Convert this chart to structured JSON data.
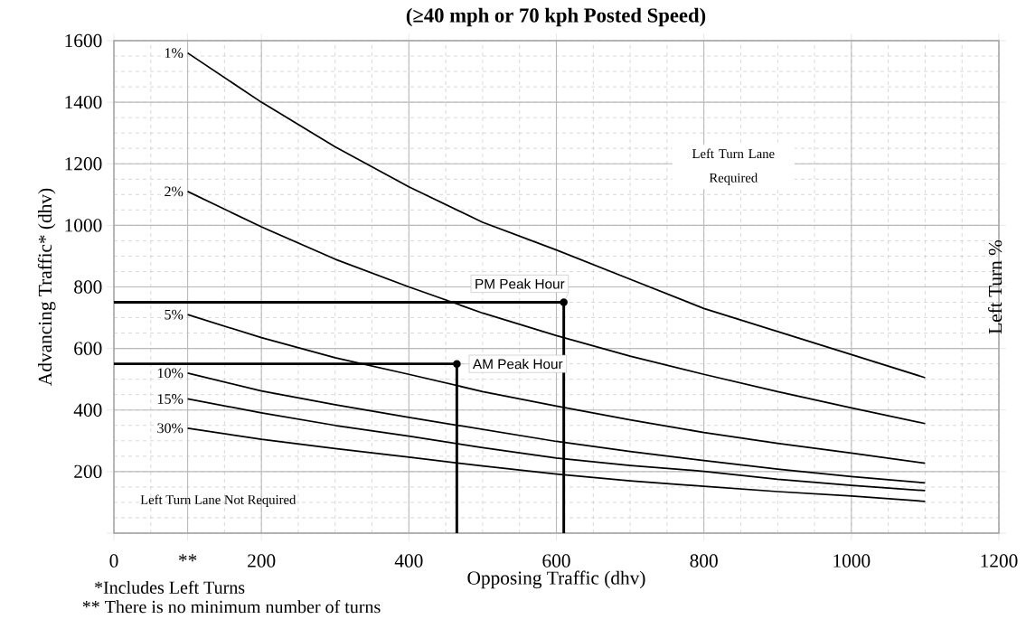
{
  "chart_data": {
    "type": "line",
    "title": "(≥40 mph or 70 kph Posted Speed)",
    "xlabel": "Opposing Traffic (dhv)",
    "ylabel": "Advancing Traffic* (dhv)",
    "y2label": "Left Turn %",
    "x": [
      100,
      200,
      300,
      400,
      500,
      600,
      700,
      800,
      900,
      1000,
      1100
    ],
    "series": [
      {
        "name": "1%",
        "color": "#000000",
        "values": [
          1560,
          1400,
          1255,
          1125,
          1010,
          920,
          825,
          730,
          655,
          580,
          505
        ]
      },
      {
        "name": "2%",
        "color": "#000000",
        "values": [
          1110,
          995,
          890,
          800,
          715,
          642,
          575,
          516,
          460,
          407,
          356
        ]
      },
      {
        "name": "5%",
        "color": "#000000",
        "values": [
          710,
          635,
          570,
          516,
          460,
          413,
          368,
          327,
          292,
          260,
          227
        ]
      },
      {
        "name": "10%",
        "color": "#000000",
        "values": [
          520,
          462,
          417,
          376,
          337,
          298,
          265,
          236,
          208,
          184,
          163
        ]
      },
      {
        "name": "15%",
        "color": "#000000",
        "values": [
          436,
          391,
          350,
          315,
          278,
          244,
          220,
          201,
          175,
          155,
          138
        ]
      },
      {
        "name": "30%",
        "color": "#000000",
        "values": [
          341,
          305,
          275,
          247,
          218,
          192,
          170,
          152,
          135,
          121,
          103
        ]
      },
      {
        "type": "line",
        "color": "#000000",
        "x": [
          0,
          465,
          465
        ],
        "values": [
          550,
          550,
          0
        ]
      },
      {
        "type": "line",
        "color": "#000000",
        "x": [
          0,
          610,
          610
        ],
        "values": [
          750,
          750,
          0
        ]
      }
    ],
    "annotations": [
      {
        "text": "AM Peak Hour",
        "x": 465,
        "y": 550
      },
      {
        "text": "PM Peak Hour",
        "x": 610,
        "y": 750
      },
      "Left Turn Lane Required",
      "Left Turn Lane Not Required",
      "*Includes Left Turns",
      "** There is no minimum number of turns"
    ],
    "xlim": [
      0,
      1200
    ],
    "ylim": [
      0,
      1600
    ],
    "xticks": [
      0,
      {
        "value": 100,
        "label": "**"
      },
      200,
      400,
      600,
      800,
      1000,
      1200
    ],
    "yticks": [
      {
        "value": 0,
        "label": null
      },
      200,
      400,
      600,
      800,
      1000,
      1200,
      1400,
      1600
    ],
    "grid": true
  }
}
